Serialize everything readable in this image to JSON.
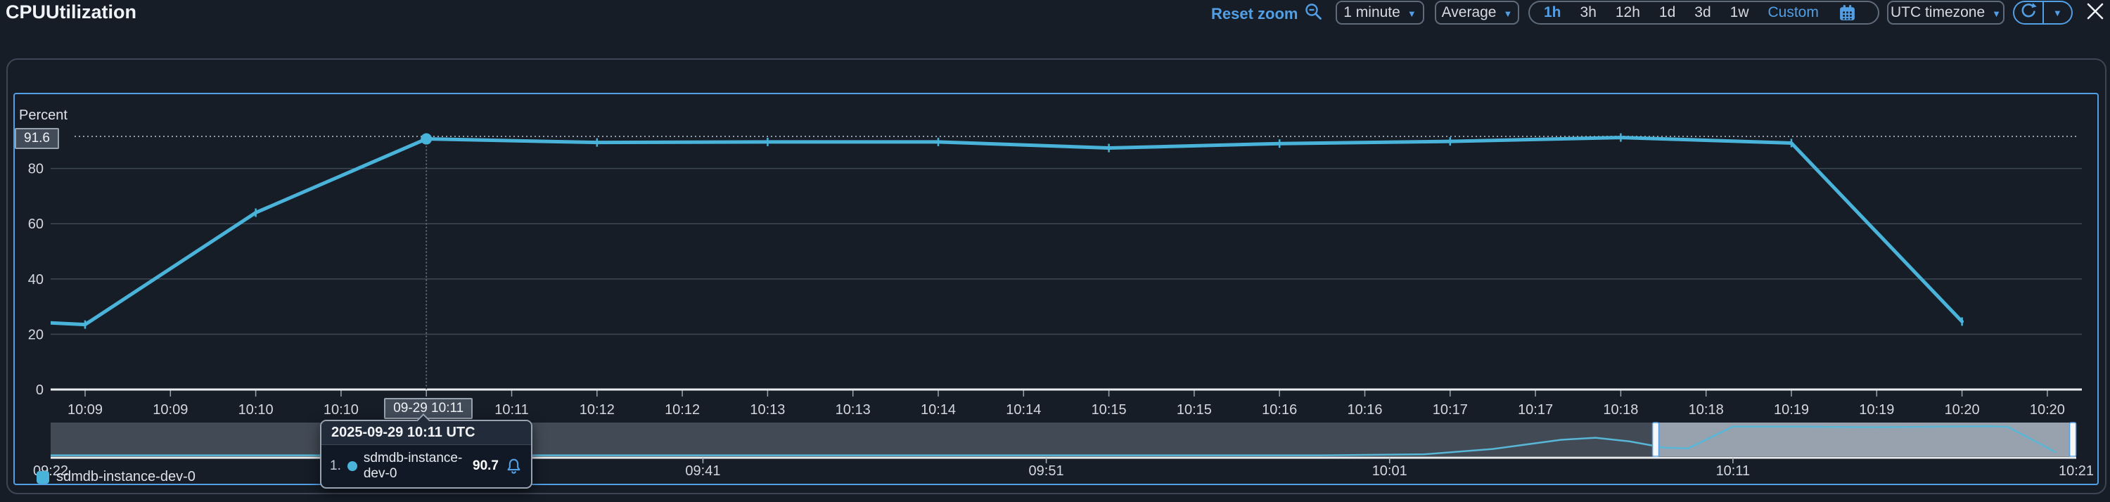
{
  "header": {
    "title": "CPUUtilization",
    "reset_zoom_label": "Reset zoom",
    "period_dropdown_value": "1 minute",
    "statistic_dropdown_value": "Average",
    "ranges": [
      "1h",
      "3h",
      "12h",
      "1d",
      "3d",
      "1w"
    ],
    "active_range": "1h",
    "custom_range_label": "Custom",
    "timezone_dropdown_value": "UTC timezone"
  },
  "chart": {
    "unit_label": "Percent",
    "y_ticks": [
      "0",
      "20",
      "40",
      "60",
      "80"
    ],
    "x_ticks": [
      "10:09",
      "10:09",
      "10:10",
      "10:10",
      "",
      "10:11",
      "10:12",
      "10:12",
      "10:13",
      "10:13",
      "10:14",
      "10:14",
      "10:15",
      "10:15",
      "10:16",
      "10:16",
      "10:17",
      "10:17",
      "10:18",
      "10:18",
      "10:19",
      "10:19",
      "10:20",
      "10:20"
    ],
    "hover": {
      "axis_value_badge": "91.6",
      "axis_time_badge": "09-29 10:11"
    }
  },
  "tooltip": {
    "title": "2025-09-29 10:11 UTC",
    "rows": [
      {
        "rank": "1.",
        "name": "sdmdb-instance-dev-0",
        "value": "90.7"
      }
    ]
  },
  "brush": {
    "tick_labels": [
      "09:22",
      "09:41",
      "09:51",
      "10:01",
      "10:11",
      "10:21"
    ]
  },
  "legend": {
    "items": [
      {
        "label": "sdmdb-instance-dev-0",
        "color": "#4ab3d9"
      }
    ]
  },
  "colors": {
    "accent_blue": "#539fe5",
    "series_teal": "#4ab3d9",
    "background": "#161d27",
    "gridline": "#3e4754",
    "brush_track": "#424a55",
    "brush_selection": "#98a1ae"
  },
  "chart_data": {
    "type": "line",
    "title": "CPUUtilization",
    "xlabel": "",
    "ylabel": "Percent",
    "ylim": [
      0,
      100
    ],
    "x": [
      "10:08",
      "10:09",
      "10:10",
      "10:11",
      "10:12",
      "10:13",
      "10:14",
      "10:15",
      "10:16",
      "10:17",
      "10:18",
      "10:19",
      "10:20"
    ],
    "series": [
      {
        "name": "sdmdb-instance-dev-0",
        "values": [
          26.5,
          23.5,
          64,
          90.7,
          89.4,
          89.6,
          89.6,
          87.4,
          89.0,
          89.8,
          91.2,
          89.2,
          24.6
        ]
      }
    ],
    "hovered_point": {
      "x": "10:11",
      "value": 90.7,
      "hover_line_value": 91.6
    },
    "brush_overview": {
      "x_range": [
        "09:22",
        "10:21"
      ],
      "selected_range": [
        "10:08",
        "10:21"
      ],
      "points_min_val": [
        [
          0,
          3
        ],
        [
          37,
          3
        ],
        [
          40,
          6
        ],
        [
          42,
          22
        ],
        [
          44,
          50
        ],
        [
          45,
          56
        ],
        [
          46,
          45
        ],
        [
          47,
          26
        ],
        [
          47.7,
          24
        ],
        [
          49,
          90
        ],
        [
          51,
          90
        ],
        [
          53,
          88
        ],
        [
          55,
          90
        ],
        [
          56.5,
          91
        ],
        [
          57,
          89
        ],
        [
          58,
          35
        ],
        [
          58.4,
          12
        ]
      ]
    }
  }
}
